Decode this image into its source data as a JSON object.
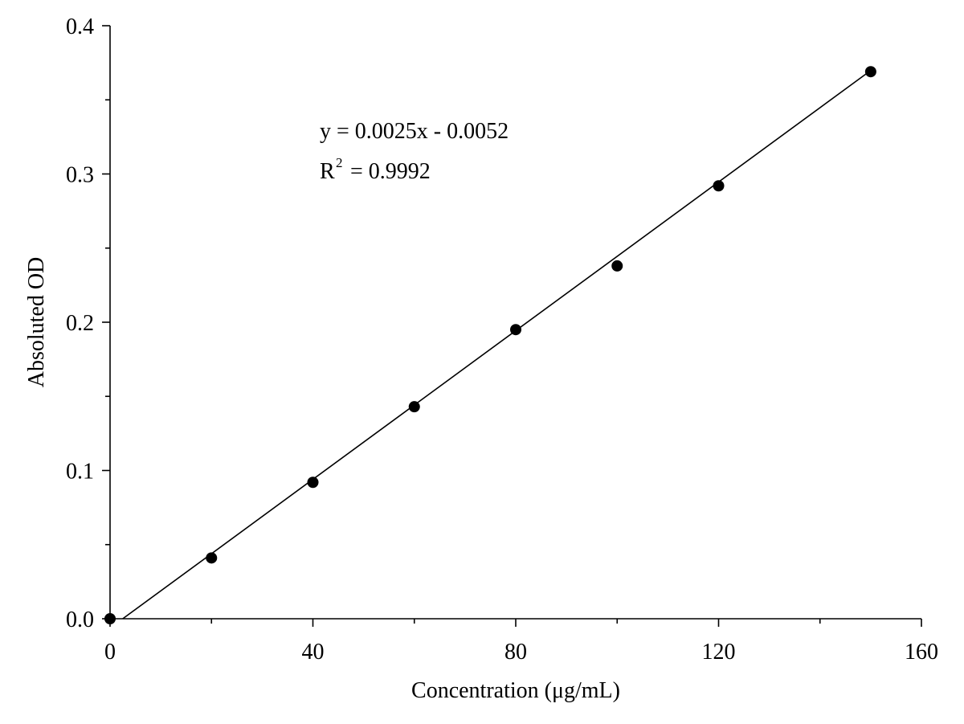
{
  "chart_data": {
    "type": "scatter",
    "x_label": "Concentration (μg/mL)",
    "y_label": "Absoluted OD",
    "annotation": {
      "equation": "y = 0.0025x - 0.0052",
      "r2_symbol": "R",
      "r2_exponent": "2",
      "r2_value": "= 0.9992"
    },
    "x": [
      0,
      20,
      40,
      60,
      80,
      100,
      120,
      150
    ],
    "values": [
      0,
      0.041,
      0.092,
      0.143,
      0.195,
      0.238,
      0.292,
      0.369
    ],
    "color": "#000000",
    "fit_line": {
      "x": [
        2.5,
        150
      ],
      "y": [
        0,
        0.3698
      ]
    },
    "xlim": [
      0,
      160
    ],
    "xticks": [
      0,
      40,
      80,
      120,
      160
    ],
    "xminor": [
      20,
      60,
      100,
      140
    ],
    "ylim": [
      0,
      0.4
    ],
    "yticks": [
      {
        "value": 0,
        "label": "0.0"
      },
      0.1,
      0.2,
      0.3,
      0.4
    ],
    "yminor": [
      0.05,
      0.15,
      0.25,
      0.35
    ]
  }
}
